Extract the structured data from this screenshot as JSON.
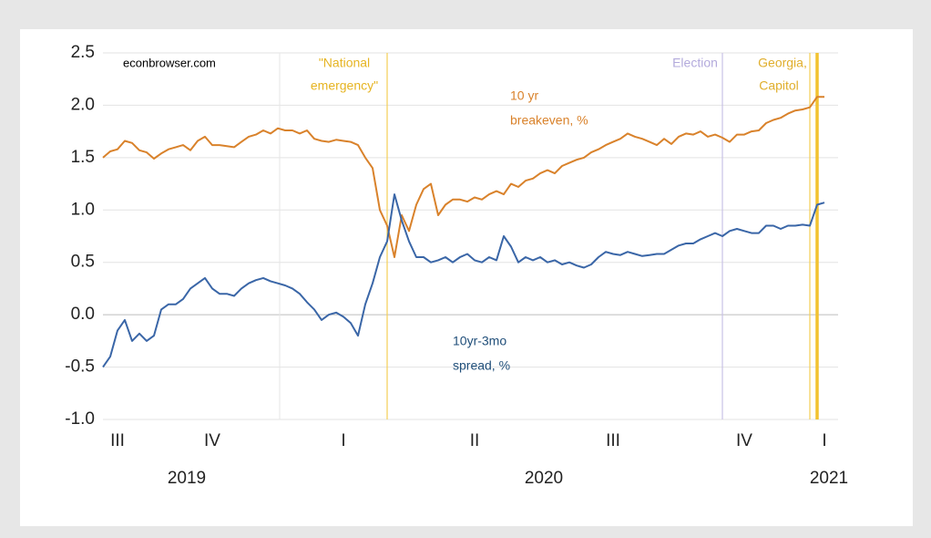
{
  "chart_data": {
    "type": "line",
    "source": "econbrowser.com",
    "categories": [
      null,
      null,
      "III",
      null,
      null,
      null,
      null,
      null,
      null,
      null,
      null,
      null,
      null,
      null,
      null,
      "IV",
      null,
      null,
      null,
      null,
      null,
      null,
      null,
      null,
      null,
      null,
      null,
      null,
      null,
      null,
      null,
      null,
      null,
      "I",
      null,
      null,
      null,
      null,
      null,
      null,
      null,
      null,
      null,
      null,
      null,
      null,
      null,
      null,
      null,
      null,
      null,
      "II",
      null,
      null,
      null,
      null,
      null,
      null,
      null,
      null,
      null,
      null,
      null,
      null,
      null,
      null,
      null,
      null,
      null,
      null,
      "III",
      null,
      null,
      null,
      null,
      null,
      null,
      null,
      null,
      null,
      null,
      null,
      null,
      null,
      null,
      null,
      null,
      null,
      "IV",
      null,
      null,
      null,
      null,
      null,
      null,
      null,
      null,
      null,
      null,
      "I"
    ],
    "years": [
      "2019",
      "2020",
      "2021"
    ],
    "series": [
      {
        "name": "10 yr breakeven, %",
        "label_lines": [
          "10 yr",
          "breakeven, %"
        ],
        "color": "#d9822b",
        "values": [
          1.5,
          1.56,
          1.58,
          1.66,
          1.64,
          1.57,
          1.55,
          1.49,
          1.54,
          1.58,
          1.6,
          1.62,
          1.57,
          1.66,
          1.7,
          1.62,
          1.62,
          1.61,
          1.6,
          1.65,
          1.7,
          1.72,
          1.76,
          1.73,
          1.78,
          1.76,
          1.76,
          1.73,
          1.76,
          1.68,
          1.66,
          1.65,
          1.67,
          1.66,
          1.65,
          1.62,
          1.5,
          1.4,
          1.0,
          0.85,
          0.55,
          0.95,
          0.8,
          1.05,
          1.2,
          1.25,
          0.95,
          1.05,
          1.1,
          1.1,
          1.08,
          1.12,
          1.1,
          1.15,
          1.18,
          1.15,
          1.25,
          1.22,
          1.28,
          1.3,
          1.35,
          1.38,
          1.35,
          1.42,
          1.45,
          1.48,
          1.5,
          1.55,
          1.58,
          1.62,
          1.65,
          1.68,
          1.73,
          1.7,
          1.68,
          1.65,
          1.62,
          1.68,
          1.63,
          1.7,
          1.73,
          1.72,
          1.75,
          1.7,
          1.72,
          1.69,
          1.65,
          1.72,
          1.72,
          1.75,
          1.76,
          1.83,
          1.86,
          1.88,
          1.92,
          1.95,
          1.96,
          1.98,
          2.08,
          2.08
        ]
      },
      {
        "name": "10yr-3mo spread, %",
        "label_lines": [
          "10yr-3mo",
          "spread, %"
        ],
        "color": "#3a66a7",
        "values": [
          -0.5,
          -0.4,
          -0.15,
          -0.05,
          -0.25,
          -0.18,
          -0.25,
          -0.2,
          0.05,
          0.1,
          0.1,
          0.15,
          0.25,
          0.3,
          0.35,
          0.25,
          0.2,
          0.2,
          0.18,
          0.25,
          0.3,
          0.33,
          0.35,
          0.32,
          0.3,
          0.28,
          0.25,
          0.2,
          0.12,
          0.05,
          -0.05,
          0.0,
          0.02,
          -0.02,
          -0.08,
          -0.2,
          0.1,
          0.3,
          0.55,
          0.7,
          1.15,
          0.9,
          0.7,
          0.55,
          0.55,
          0.5,
          0.52,
          0.55,
          0.5,
          0.55,
          0.58,
          0.52,
          0.5,
          0.55,
          0.52,
          0.75,
          0.65,
          0.5,
          0.55,
          0.52,
          0.55,
          0.5,
          0.52,
          0.48,
          0.5,
          0.47,
          0.45,
          0.48,
          0.55,
          0.6,
          0.58,
          0.57,
          0.6,
          0.58,
          0.56,
          0.57,
          0.58,
          0.58,
          0.62,
          0.66,
          0.68,
          0.68,
          0.72,
          0.75,
          0.78,
          0.75,
          0.8,
          0.82,
          0.8,
          0.78,
          0.78,
          0.85,
          0.85,
          0.82,
          0.85,
          0.85,
          0.86,
          0.85,
          1.05,
          1.07
        ]
      }
    ],
    "events": [
      {
        "label_lines": [
          "\"National",
          "emergency\""
        ],
        "at_category": 39,
        "color": "#f5cf55",
        "text_color": "#e6b422"
      },
      {
        "label_lines": [
          "Election"
        ],
        "at_category": 85,
        "color": "#c9c2e6",
        "text_color": "#b3aadc"
      },
      {
        "label_lines": [
          "Georgia,"
        ],
        "at_category": 97,
        "color": "#f5cf55",
        "text_color": "#e0ae2c"
      },
      {
        "label_lines": [
          "Capitol"
        ],
        "at_category": 98,
        "color": "#f2c230",
        "text_color": "#e0ae2c"
      }
    ],
    "ylim": [
      -1.0,
      2.5
    ],
    "yticks": [
      {
        "value": -1,
        "label": "-1.0"
      },
      -0.5,
      {
        "value": 0,
        "label": "0.0"
      },
      0.5,
      {
        "value": 1,
        "label": "1.0"
      },
      1.5,
      {
        "value": 2,
        "label": "2.0"
      },
      2.5
    ],
    "grid": true
  }
}
